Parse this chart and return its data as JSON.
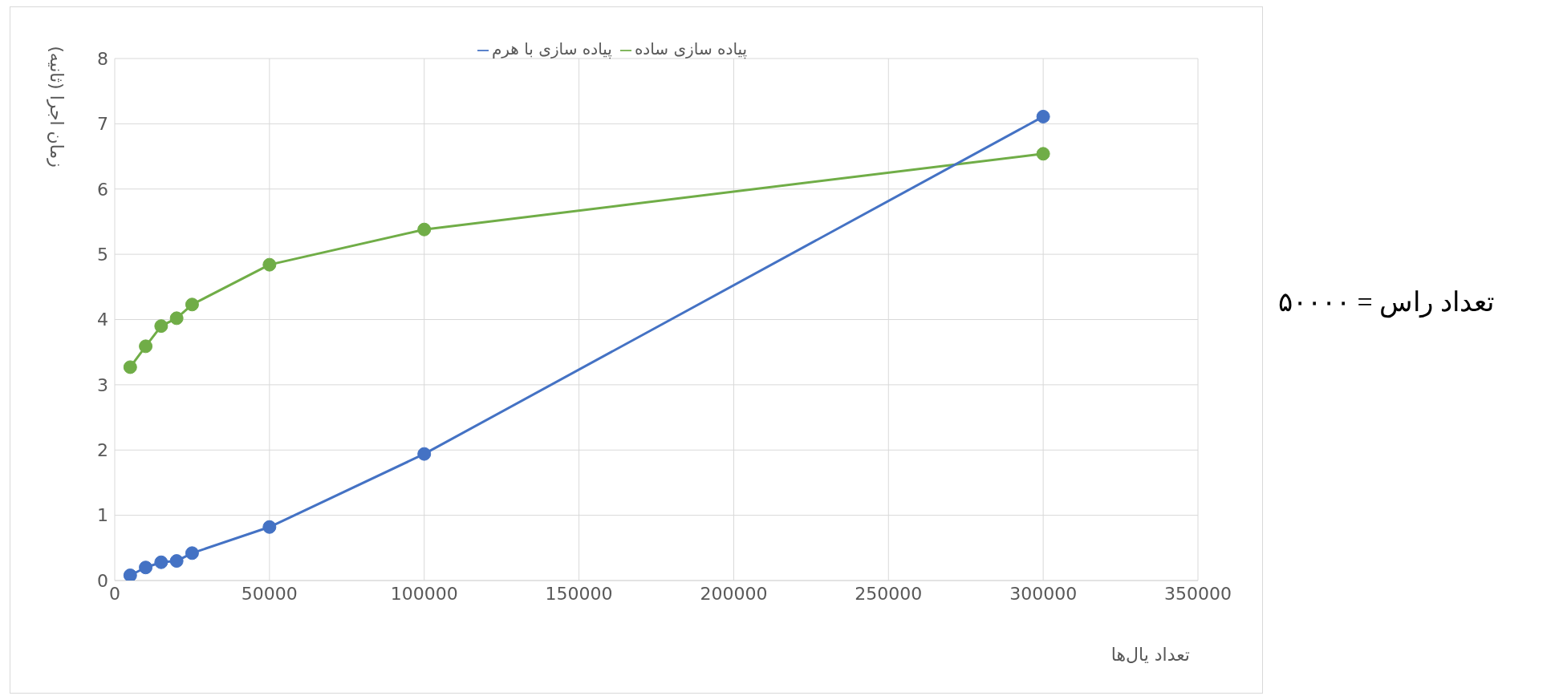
{
  "chart_data": {
    "type": "line",
    "xlabel": "تعداد یال‌ها",
    "ylabel": "زمان اجرا (ثانیه)",
    "x": [
      5000,
      10000,
      15000,
      20000,
      25000,
      50000,
      100000,
      300000
    ],
    "series": [
      {
        "name": "پیاده سازی ساده",
        "color": "#70ad47",
        "values": [
          3.27,
          3.59,
          3.9,
          4.02,
          4.23,
          4.84,
          5.38,
          6.54
        ]
      },
      {
        "name": "پیاده سازی با هرم",
        "color": "#4472c4",
        "values": [
          0.08,
          0.2,
          0.28,
          0.3,
          0.42,
          0.82,
          1.94,
          7.11
        ]
      }
    ],
    "xlim": [
      0,
      350000
    ],
    "xticks": [
      0,
      50000,
      100000,
      150000,
      200000,
      250000,
      300000,
      350000
    ],
    "ylim": [
      0,
      8
    ],
    "yticks": [
      0,
      1,
      2,
      3,
      4,
      5,
      6,
      7,
      8
    ],
    "grid": true,
    "legend": "top",
    "marker": "circle",
    "line_style": "solid",
    "annotations": [
      "تعداد راس = ۵۰۰۰۰"
    ]
  }
}
